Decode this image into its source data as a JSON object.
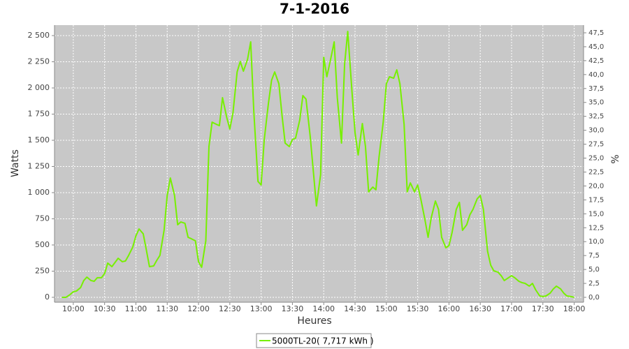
{
  "chart_data": {
    "type": "line",
    "title": "7-1-2016",
    "x_label": "Heures",
    "y_label": "Watts",
    "y2_label": "%",
    "x": [
      "09:49",
      "09:53",
      "09:57",
      "10:00",
      "10:03",
      "10:07",
      "10:10",
      "10:13",
      "10:17",
      "10:20",
      "10:23",
      "10:27",
      "10:30",
      "10:33",
      "10:37",
      "10:40",
      "10:43",
      "10:47",
      "10:50",
      "10:53",
      "10:57",
      "11:00",
      "11:03",
      "11:07",
      "11:10",
      "11:13",
      "11:17",
      "11:20",
      "11:23",
      "11:27",
      "11:30",
      "11:33",
      "11:37",
      "11:40",
      "11:43",
      "11:47",
      "11:50",
      "11:53",
      "11:57",
      "12:00",
      "12:03",
      "12:07",
      "12:10",
      "12:13",
      "12:17",
      "12:20",
      "12:23",
      "12:27",
      "12:30",
      "12:33",
      "12:37",
      "12:40",
      "12:43",
      "12:47",
      "12:50",
      "12:53",
      "12:57",
      "13:00",
      "13:03",
      "13:07",
      "13:10",
      "13:13",
      "13:17",
      "13:20",
      "13:23",
      "13:27",
      "13:30",
      "13:33",
      "13:37",
      "13:40",
      "13:43",
      "13:47",
      "13:50",
      "13:53",
      "13:57",
      "14:00",
      "14:03",
      "14:07",
      "14:10",
      "14:13",
      "14:17",
      "14:20",
      "14:23",
      "14:27",
      "14:30",
      "14:33",
      "14:37",
      "14:40",
      "14:43",
      "14:47",
      "14:50",
      "14:53",
      "14:57",
      "15:00",
      "15:03",
      "15:07",
      "15:10",
      "15:13",
      "15:17",
      "15:20",
      "15:23",
      "15:27",
      "15:30",
      "15:33",
      "15:37",
      "15:40",
      "15:43",
      "15:47",
      "15:50",
      "15:53",
      "15:57",
      "16:00",
      "16:03",
      "16:07",
      "16:10",
      "16:13",
      "16:17",
      "16:20",
      "16:23",
      "16:27",
      "16:30",
      "16:33",
      "16:37",
      "16:40",
      "16:43",
      "16:47",
      "16:50",
      "16:53",
      "16:57",
      "17:00",
      "17:03",
      "17:07",
      "17:10",
      "17:13",
      "17:17",
      "17:20",
      "17:23",
      "17:27",
      "17:30",
      "17:33",
      "17:37",
      "17:40",
      "17:43",
      "17:47",
      "17:50",
      "17:53",
      "17:57",
      "18:00"
    ],
    "series": [
      {
        "name": "5000TL-20( 7,717 kWh )",
        "color": "#77f000",
        "values": [
          0,
          0,
          27,
          53,
          60,
          93,
          160,
          193,
          160,
          153,
          187,
          187,
          227,
          327,
          293,
          333,
          373,
          340,
          347,
          400,
          480,
          587,
          653,
          607,
          453,
          293,
          300,
          353,
          400,
          640,
          973,
          1140,
          973,
          693,
          720,
          707,
          573,
          560,
          540,
          340,
          287,
          540,
          1440,
          1673,
          1653,
          1640,
          1907,
          1720,
          1607,
          1760,
          2153,
          2253,
          2160,
          2273,
          2440,
          1773,
          1107,
          1073,
          1507,
          1853,
          2073,
          2153,
          2040,
          1740,
          1473,
          1440,
          1507,
          1520,
          1693,
          1927,
          1893,
          1540,
          1207,
          873,
          1173,
          2293,
          2107,
          2293,
          2440,
          1907,
          1473,
          2227,
          2540,
          1973,
          1573,
          1360,
          1660,
          1440,
          1007,
          1053,
          1027,
          1340,
          1673,
          2040,
          2107,
          2093,
          2173,
          2040,
          1653,
          1007,
          1093,
          1007,
          1073,
          940,
          740,
          573,
          760,
          920,
          840,
          573,
          473,
          493,
          620,
          840,
          907,
          640,
          693,
          787,
          840,
          940,
          973,
          840,
          440,
          307,
          253,
          240,
          207,
          160,
          187,
          207,
          187,
          153,
          140,
          133,
          107,
          133,
          73,
          13,
          7,
          13,
          40,
          80,
          107,
          80,
          40,
          13,
          7,
          0
        ]
      }
    ],
    "xlim": [
      "09:42",
      "18:09"
    ],
    "xticks": [
      "10:00",
      "10:30",
      "11:00",
      "11:30",
      "12:00",
      "12:30",
      "13:00",
      "13:30",
      "14:00",
      "14:30",
      "15:00",
      "15:30",
      "16:00",
      "16:30",
      "17:00",
      "17:30",
      "18:00"
    ],
    "ylim": [
      -47,
      2600
    ],
    "yticks": [
      0,
      250,
      500,
      750,
      {
        "value": 1000,
        "label": "1 000"
      },
      {
        "value": 1250,
        "label": "1 250"
      },
      {
        "value": 1500,
        "label": "1 500"
      },
      {
        "value": 1750,
        "label": "1 750"
      },
      {
        "value": 2000,
        "label": "2 000"
      },
      {
        "value": 2250,
        "label": "2 250"
      },
      {
        "value": 2500,
        "label": "2 500"
      }
    ],
    "y2lim": [
      -0.88,
      48.88
    ],
    "y2ticks": [
      {
        "value": 0,
        "label": "0,0"
      },
      {
        "value": 2.5,
        "label": "2,5"
      },
      {
        "value": 5,
        "label": "5,0"
      },
      {
        "value": 7.5,
        "label": "7,5"
      },
      {
        "value": 10,
        "label": "10,0"
      },
      {
        "value": 12.5,
        "label": "12,5"
      },
      {
        "value": 15,
        "label": "15,0"
      },
      {
        "value": 17.5,
        "label": "17,5"
      },
      {
        "value": 20,
        "label": "20,0"
      },
      {
        "value": 22.5,
        "label": "22,5"
      },
      {
        "value": 25,
        "label": "25,0"
      },
      {
        "value": 27.5,
        "label": "27,5"
      },
      {
        "value": 30,
        "label": "30,0"
      },
      {
        "value": 32.5,
        "label": "32,5"
      },
      {
        "value": 35,
        "label": "35,0"
      },
      {
        "value": 37.5,
        "label": "37,5"
      },
      {
        "value": 40,
        "label": "40,0"
      },
      {
        "value": 42.5,
        "label": "42,5"
      },
      {
        "value": 45,
        "label": "45,0"
      },
      {
        "value": 47.5,
        "label": "47,5"
      }
    ],
    "grid": true,
    "background": "#c8c8c8",
    "grid_color": "#ffffff"
  }
}
